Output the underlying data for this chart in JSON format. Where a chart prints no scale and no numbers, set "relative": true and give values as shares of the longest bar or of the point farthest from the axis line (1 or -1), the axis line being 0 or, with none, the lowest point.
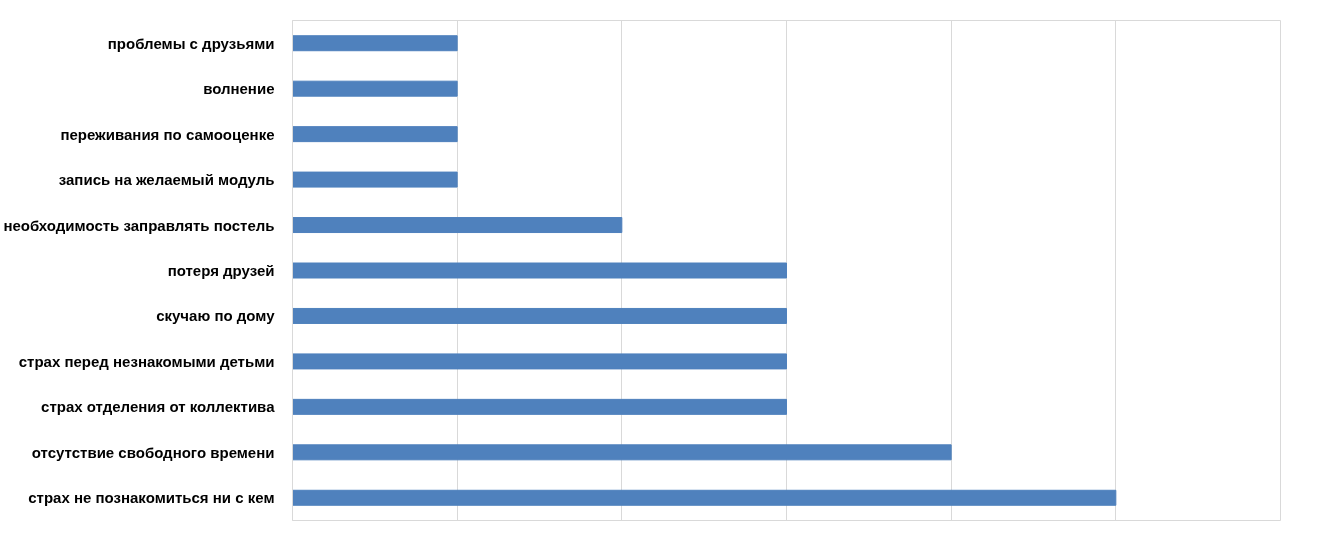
{
  "chart_data": {
    "type": "bar",
    "orientation": "horizontal",
    "relative": true,
    "categories": [
      "проблемы с друзьями",
      "волнение",
      "переживания по самооценке",
      "запись на желаемый модуль",
      "необходимость заправлять постель",
      "потеря друзей",
      "скучаю по дому",
      "страх перед незнакомыми детьми",
      "страх отделения от коллектива",
      "отсутствие свободного времени",
      "страх не познакомиться ни с кем"
    ],
    "values": [
      0.2,
      0.2,
      0.2,
      0.2,
      0.4,
      0.6,
      0.6,
      0.6,
      0.6,
      0.8,
      1.0
    ],
    "color": "#4f81bd",
    "grid": "x"
  }
}
